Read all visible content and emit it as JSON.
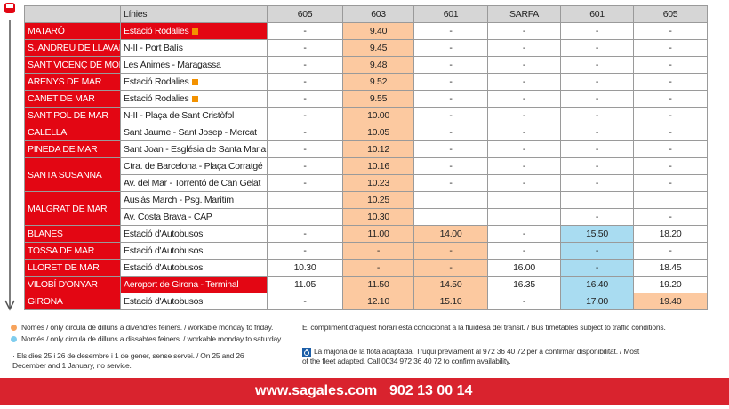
{
  "header": {
    "lines": "Línies",
    "columns": [
      "605",
      "603",
      "601",
      "SARFA",
      "601",
      "605"
    ]
  },
  "towns": [
    {
      "name": "MATARÓ",
      "stops": [
        {
          "stop": "Estació Rodalies",
          "times": [
            "-",
            "9.40",
            "-",
            "-",
            "-",
            "-"
          ]
        }
      ]
    },
    {
      "name": "S. ANDREU DE LLAVANERES",
      "stops": [
        {
          "stop": "N-II - Port Balís",
          "times": [
            "-",
            "9.45",
            "-",
            "-",
            "-",
            "-"
          ]
        }
      ]
    },
    {
      "name": "SANT VICENÇ DE MONTALT",
      "stops": [
        {
          "stop": "Les Ànimes - Maragassa",
          "times": [
            "-",
            "9.48",
            "-",
            "-",
            "-",
            "-"
          ]
        }
      ]
    },
    {
      "name": "ARENYS DE MAR",
      "stops": [
        {
          "stop": "Estació Rodalies",
          "times": [
            "-",
            "9.52",
            "-",
            "-",
            "-",
            "-"
          ]
        }
      ]
    },
    {
      "name": "CANET DE MAR",
      "stops": [
        {
          "stop": "Estació Rodalies",
          "times": [
            "-",
            "9.55",
            "-",
            "-",
            "-",
            "-"
          ]
        }
      ]
    },
    {
      "name": "SANT POL DE MAR",
      "stops": [
        {
          "stop": "N-II - Plaça de Sant Cristòfol",
          "times": [
            "-",
            "10.00",
            "-",
            "-",
            "-",
            "-"
          ]
        }
      ]
    },
    {
      "name": "CALELLA",
      "stops": [
        {
          "stop": "Sant Jaume - Sant Josep - Mercat",
          "times": [
            "-",
            "10.05",
            "-",
            "-",
            "-",
            "-"
          ]
        }
      ]
    },
    {
      "name": "PINEDA DE MAR",
      "stops": [
        {
          "stop": "Sant Joan - Església de Santa Maria",
          "times": [
            "-",
            "10.12",
            "-",
            "-",
            "-",
            "-"
          ]
        }
      ]
    },
    {
      "name": "SANTA SUSANNA",
      "stops": [
        {
          "stop": "Ctra. de Barcelona - Plaça Corratgé",
          "times": [
            "-",
            "10.16",
            "-",
            "-",
            "-",
            "-"
          ]
        },
        {
          "stop": "Av. del Mar - Torrentó de Can Gelat",
          "times": [
            "-",
            "10.23",
            "-",
            "-",
            "-",
            "-"
          ]
        }
      ]
    },
    {
      "name": "MALGRAT DE MAR",
      "stops": [
        {
          "stop": "Ausiàs March - Psg. Marítim",
          "times": [
            null,
            "10.25",
            null,
            null,
            null,
            null
          ]
        },
        {
          "stop": "Av. Costa Brava - CAP",
          "times": [
            null,
            "10.30",
            null,
            null,
            "-",
            "-"
          ]
        }
      ]
    },
    {
      "name": "BLANES",
      "stops": [
        {
          "stop": "Estació d'Autobusos",
          "times": [
            "-",
            "11.00",
            "14.00",
            "-",
            "15.50",
            "18.20"
          ]
        }
      ]
    },
    {
      "name": "TOSSA DE MAR",
      "stops": [
        {
          "stop": "Estació d'Autobusos",
          "times": [
            "-",
            "-",
            "-",
            "-",
            "-",
            "-"
          ]
        }
      ]
    },
    {
      "name": "LLORET DE MAR",
      "stops": [
        {
          "stop": "Estació d'Autobusos",
          "times": [
            "10.30",
            "-",
            "-",
            "16.00",
            "-",
            "18.45"
          ]
        }
      ]
    },
    {
      "name": "VILOBÍ D'ONYAR",
      "stops": [
        {
          "stop": "Aeroport de Girona - Terminal",
          "times": [
            "11.05",
            "11.50",
            "14.50",
            "16.35",
            "16.40",
            "19.20"
          ]
        }
      ]
    },
    {
      "name": "GIRONA",
      "stops": [
        {
          "stop": "Estació d'Autobusos",
          "times": [
            "-",
            "12.10",
            "15.10",
            "-",
            "17.00",
            "19.40"
          ]
        }
      ]
    }
  ],
  "notes": {
    "weekdays": "Només / only circula de dilluns a divendres feiners. / workable monday to friday.",
    "saturdays": "Només / only circula de dilluns a dissabtes feiners. / workable monday to saturday.",
    "holidays": "· Els dies 25 i 26 de desembre i 1 de gener, sense servei. / On 25 and 26 December and 1 January, no service.",
    "traffic": "El compliment d'aquest horari està condicionat a la fluïdesa del trànsit. / Bus timetables subject to traffic conditions.",
    "accessibility": "La majoria de la flota adaptada. Truqui prèviament al 972 36 40 72 per a confirmar disponibilitat. / Most of the fleet adapted. Call 0034 972 36 40 72 to confirm availability."
  },
  "footer": {
    "website": "www.sagales.com",
    "phone": "902 13 00 14"
  }
}
